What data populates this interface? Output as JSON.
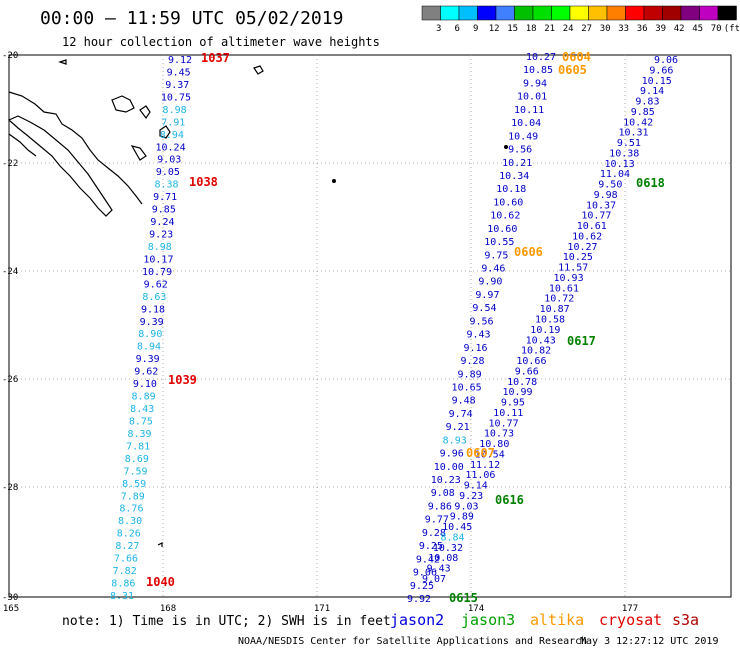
{
  "header": {
    "title": "00:00 – 11:59 UTC 05/02/2019",
    "subtitle": "12 hour collection of altimeter wave heights"
  },
  "colorbar": {
    "unit": "(ft)",
    "colors": [
      "#808080",
      "#00ffff",
      "#00bfff",
      "#0000ff",
      "#4080ff",
      "#00c000",
      "#00e000",
      "#00ff00",
      "#ffff00",
      "#ffc000",
      "#ff8000",
      "#ff0000",
      "#c00000",
      "#a00000",
      "#800080",
      "#c000c0",
      "#000000"
    ],
    "labels": [
      "3",
      "6",
      "9",
      "12",
      "15",
      "18",
      "21",
      "24",
      "27",
      "30",
      "33",
      "36",
      "39",
      "42",
      "45",
      "70",
      "(ft)"
    ]
  },
  "axes": {
    "x_ticks": [
      "165",
      "168",
      "171",
      "174",
      "177"
    ],
    "y_ticks": [
      "-20",
      "-22",
      "-24",
      "-26",
      "-28",
      "-30"
    ]
  },
  "observations": {
    "track_1": [
      {
        "v": "9.12",
        "c": "#0000c8"
      },
      {
        "v": "9.45",
        "c": "#0000c8"
      },
      {
        "v": "9.37",
        "c": "#0000c8"
      },
      {
        "v": "10.75",
        "c": "#0000c8"
      },
      {
        "v": "8.98",
        "c": "#1eb4e6"
      },
      {
        "v": "7.91",
        "c": "#1eb4e6"
      },
      {
        "v": "8.94",
        "c": "#1eb4e6"
      },
      {
        "v": "10.24",
        "c": "#0000c8"
      },
      {
        "v": "9.03",
        "c": "#0000c8"
      },
      {
        "v": "9.05",
        "c": "#0000c8"
      },
      {
        "v": "8.38",
        "c": "#1eb4e6"
      },
      {
        "v": "9.71",
        "c": "#0000c8"
      },
      {
        "v": "9.85",
        "c": "#0000c8"
      },
      {
        "v": "9.24",
        "c": "#0000c8"
      },
      {
        "v": "9.23",
        "c": "#0000c8"
      },
      {
        "v": "8.98",
        "c": "#1eb4e6"
      },
      {
        "v": "10.17",
        "c": "#0000c8"
      },
      {
        "v": "10.79",
        "c": "#0000c8"
      },
      {
        "v": "9.62",
        "c": "#0000c8"
      },
      {
        "v": "8.63",
        "c": "#1eb4e6"
      },
      {
        "v": "9.18",
        "c": "#0000c8"
      },
      {
        "v": "9.39",
        "c": "#0000c8"
      },
      {
        "v": "8.90",
        "c": "#1eb4e6"
      },
      {
        "v": "8.94",
        "c": "#1eb4e6"
      },
      {
        "v": "9.39",
        "c": "#0000c8"
      },
      {
        "v": "9.62",
        "c": "#0000c8"
      },
      {
        "v": "9.10",
        "c": "#0000c8"
      },
      {
        "v": "8.89",
        "c": "#1eb4e6"
      },
      {
        "v": "8.43",
        "c": "#1eb4e6"
      },
      {
        "v": "8.75",
        "c": "#1eb4e6"
      },
      {
        "v": "8.39",
        "c": "#1eb4e6"
      },
      {
        "v": "7.81",
        "c": "#1eb4e6"
      },
      {
        "v": "8.69",
        "c": "#1eb4e6"
      },
      {
        "v": "7.59",
        "c": "#1eb4e6"
      },
      {
        "v": "8.59",
        "c": "#1eb4e6"
      },
      {
        "v": "7.89",
        "c": "#1eb4e6"
      },
      {
        "v": "8.76",
        "c": "#1eb4e6"
      },
      {
        "v": "8.30",
        "c": "#1eb4e6"
      },
      {
        "v": "8.26",
        "c": "#1eb4e6"
      },
      {
        "v": "8.27",
        "c": "#1eb4e6"
      },
      {
        "v": "7.66",
        "c": "#1eb4e6"
      },
      {
        "v": "7.82",
        "c": "#1eb4e6"
      },
      {
        "v": "8.86",
        "c": "#1eb4e6"
      },
      {
        "v": "8.31",
        "c": "#1eb4e6"
      }
    ],
    "track_2": [
      {
        "v": "10.27",
        "c": "#0000c8"
      },
      {
        "v": "10.85",
        "c": "#0000c8"
      },
      {
        "v": "9.94",
        "c": "#0000c8"
      },
      {
        "v": "10.01",
        "c": "#0000c8"
      },
      {
        "v": "10.11",
        "c": "#0000c8"
      },
      {
        "v": "10.04",
        "c": "#0000c8"
      },
      {
        "v": "10.49",
        "c": "#0000c8"
      },
      {
        "v": "9.56",
        "c": "#0000c8"
      },
      {
        "v": "10.21",
        "c": "#0000c8"
      },
      {
        "v": "10.34",
        "c": "#0000c8"
      },
      {
        "v": "10.18",
        "c": "#0000c8"
      },
      {
        "v": "10.60",
        "c": "#0000c8"
      },
      {
        "v": "10.62",
        "c": "#0000c8"
      },
      {
        "v": "10.60",
        "c": "#0000c8"
      },
      {
        "v": "10.55",
        "c": "#0000c8"
      },
      {
        "v": "9.75",
        "c": "#0000c8"
      },
      {
        "v": "9.46",
        "c": "#0000c8"
      },
      {
        "v": "9.90",
        "c": "#0000c8"
      },
      {
        "v": "9.97",
        "c": "#0000c8"
      },
      {
        "v": "9.54",
        "c": "#0000c8"
      },
      {
        "v": "9.56",
        "c": "#0000c8"
      },
      {
        "v": "9.43",
        "c": "#0000c8"
      },
      {
        "v": "9.16",
        "c": "#0000c8"
      },
      {
        "v": "9.28",
        "c": "#0000c8"
      },
      {
        "v": "9.89",
        "c": "#0000c8"
      },
      {
        "v": "10.65",
        "c": "#0000c8"
      },
      {
        "v": "9.48",
        "c": "#0000c8"
      },
      {
        "v": "9.74",
        "c": "#0000c8"
      },
      {
        "v": "9.21",
        "c": "#0000c8"
      },
      {
        "v": "8.93",
        "c": "#1eb4e6"
      },
      {
        "v": "9.96",
        "c": "#0000c8"
      },
      {
        "v": "10.00",
        "c": "#0000c8"
      },
      {
        "v": "10.23",
        "c": "#0000c8"
      },
      {
        "v": "9.08",
        "c": "#0000c8"
      },
      {
        "v": "9.86",
        "c": "#0000c8"
      },
      {
        "v": "9.77",
        "c": "#0000c8"
      },
      {
        "v": "9.28",
        "c": "#0000c8"
      },
      {
        "v": "9.25",
        "c": "#0000c8"
      },
      {
        "v": "9.42",
        "c": "#0000c8"
      },
      {
        "v": "9.06",
        "c": "#0000c8"
      },
      {
        "v": "9.25",
        "c": "#0000c8"
      },
      {
        "v": "9.92",
        "c": "#0000c8"
      }
    ],
    "track_3": [
      {
        "v": "9.06",
        "c": "#0000c8"
      },
      {
        "v": "9.66",
        "c": "#0000c8"
      },
      {
        "v": "10.15",
        "c": "#0000c8"
      },
      {
        "v": "9.14",
        "c": "#0000c8"
      },
      {
        "v": "9.83",
        "c": "#0000c8"
      },
      {
        "v": "9.85",
        "c": "#0000c8"
      },
      {
        "v": "10.42",
        "c": "#0000c8"
      },
      {
        "v": "10.31",
        "c": "#0000c8"
      },
      {
        "v": "9.51",
        "c": "#0000c8"
      },
      {
        "v": "10.38",
        "c": "#0000c8"
      },
      {
        "v": "10.13",
        "c": "#0000c8"
      },
      {
        "v": "11.04",
        "c": "#0000c8"
      },
      {
        "v": "9.50",
        "c": "#0000c8"
      },
      {
        "v": "9.98",
        "c": "#0000c8"
      },
      {
        "v": "10.37",
        "c": "#0000c8"
      },
      {
        "v": "10.77",
        "c": "#0000c8"
      },
      {
        "v": "10.61",
        "c": "#0000c8"
      },
      {
        "v": "10.62",
        "c": "#0000c8"
      },
      {
        "v": "10.27",
        "c": "#0000c8"
      },
      {
        "v": "10.25",
        "c": "#0000c8"
      },
      {
        "v": "11.57",
        "c": "#0000c8"
      },
      {
        "v": "10.93",
        "c": "#0000c8"
      },
      {
        "v": "10.61",
        "c": "#0000c8"
      },
      {
        "v": "10.72",
        "c": "#0000c8"
      },
      {
        "v": "10.87",
        "c": "#0000c8"
      },
      {
        "v": "10.58",
        "c": "#0000c8"
      },
      {
        "v": "10.19",
        "c": "#0000c8"
      },
      {
        "v": "10.43",
        "c": "#0000c8"
      },
      {
        "v": "10.82",
        "c": "#0000c8"
      },
      {
        "v": "10.66",
        "c": "#0000c8"
      },
      {
        "v": "9.66",
        "c": "#0000c8"
      },
      {
        "v": "10.78",
        "c": "#0000c8"
      },
      {
        "v": "10.99",
        "c": "#0000c8"
      },
      {
        "v": "9.95",
        "c": "#0000c8"
      },
      {
        "v": "10.11",
        "c": "#0000c8"
      },
      {
        "v": "10.77",
        "c": "#0000c8"
      },
      {
        "v": "10.73",
        "c": "#0000c8"
      },
      {
        "v": "10.80",
        "c": "#0000c8"
      },
      {
        "v": "10.54",
        "c": "#0000c8"
      },
      {
        "v": "11.12",
        "c": "#0000c8"
      },
      {
        "v": "11.06",
        "c": "#0000c8"
      },
      {
        "v": "9.14",
        "c": "#0000c8"
      },
      {
        "v": "9.23",
        "c": "#0000c8"
      },
      {
        "v": "9.03",
        "c": "#0000c8"
      },
      {
        "v": "9.89",
        "c": "#0000c8"
      },
      {
        "v": "10.45",
        "c": "#0000c8"
      },
      {
        "v": "8.84",
        "c": "#1eb4e6"
      },
      {
        "v": "10.32",
        "c": "#0000c8"
      },
      {
        "v": "10.08",
        "c": "#0000c8"
      },
      {
        "v": "9.43",
        "c": "#0000c8"
      },
      {
        "v": "9.07",
        "c": "#0000c8"
      }
    ]
  },
  "pass_times": [
    {
      "t": "1037",
      "c": "#e00000"
    },
    {
      "t": "1038",
      "c": "#e00000"
    },
    {
      "t": "1039",
      "c": "#e00000"
    },
    {
      "t": "1040",
      "c": "#e00000"
    },
    {
      "t": "0604",
      "c": "#ff9900"
    },
    {
      "t": "0605",
      "c": "#ff9900"
    },
    {
      "t": "0606",
      "c": "#ff9900"
    },
    {
      "t": "0607",
      "c": "#ff9900"
    },
    {
      "t": "0618",
      "c": "#008000"
    },
    {
      "t": "0617",
      "c": "#008000"
    },
    {
      "t": "0616",
      "c": "#008000"
    },
    {
      "t": "0615",
      "c": "#008000"
    }
  ],
  "legend": {
    "note": "note: 1) Time is in UTC; 2) SWH is in feet",
    "satellites": [
      {
        "name": "jason2",
        "c": "#0000e0"
      },
      {
        "name": "jason3",
        "c": "#00a000"
      },
      {
        "name": "altika",
        "c": "#ff9900"
      },
      {
        "name": "cryosat",
        "c": "#e00000"
      },
      {
        "name": "s3a",
        "c": "#b00000"
      }
    ]
  },
  "footer": {
    "org": "NOAA/NESDIS Center for Satellite Applications and Research",
    "timestamp": "May  3 12:27:12 UTC 2019"
  }
}
